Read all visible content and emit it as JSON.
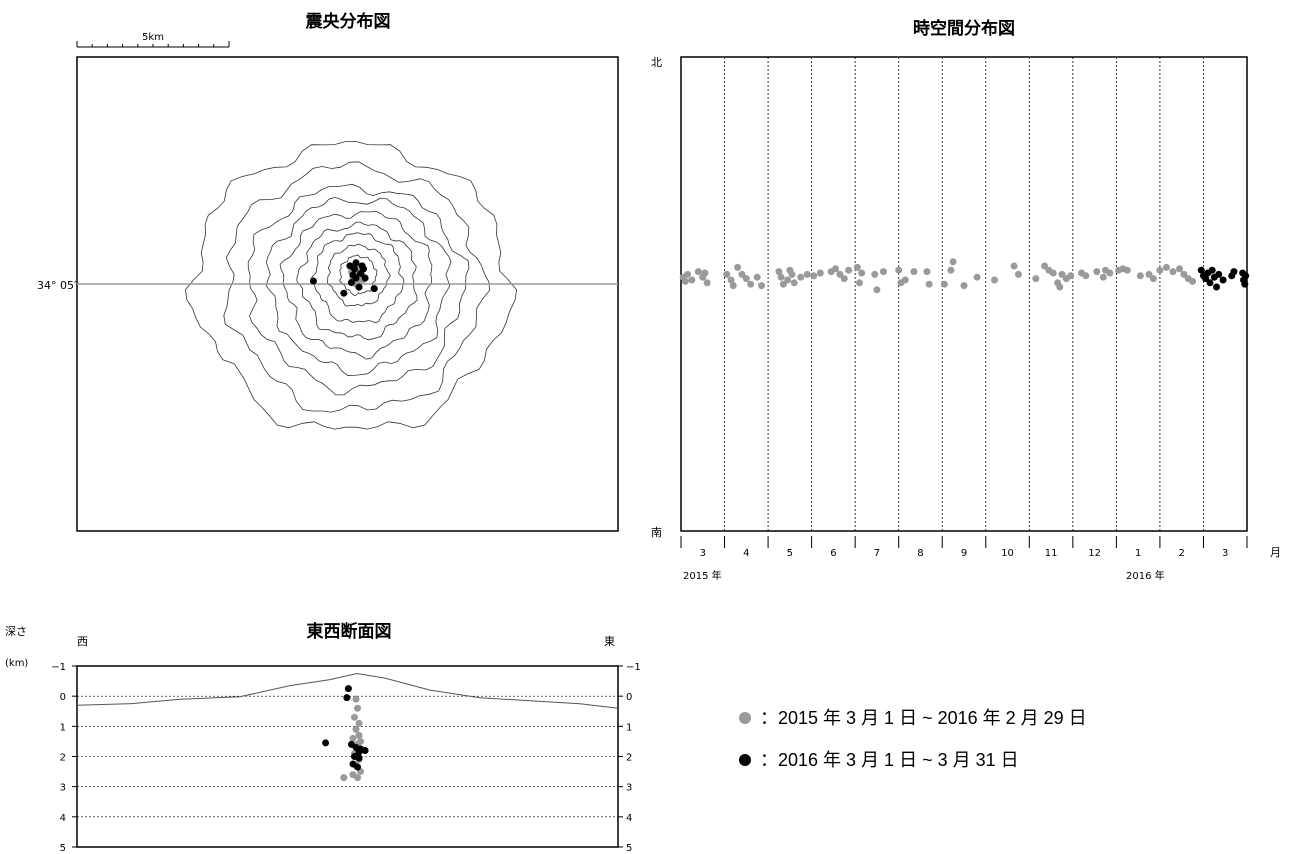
{
  "colors": {
    "previous": "#9a9a9a",
    "current": "#000000",
    "line": "#000000",
    "latitude_line": "#9a9a9a"
  },
  "legend": {
    "previous_label": "：2015 年 3 月 1 日 ~ 2016 年 2 月 29 日",
    "current_label": "：2016 年 3 月 1 日 ~ 3 月 31 日"
  },
  "chart_data": [
    {
      "type": "scatter",
      "id": "epicenter_map",
      "title": "震央分布図",
      "scale_label": "5km",
      "latitude_label": "34° 05′",
      "series": [
        {
          "points": [
            {
              "x": 0.0,
              "y": 0.2
            },
            {
              "x": 0.1,
              "y": -0.1
            },
            {
              "x": -0.1,
              "y": 0.0
            },
            {
              "x": 0.05,
              "y": 0.3
            },
            {
              "x": 0.2,
              "y": 0.1
            },
            {
              "x": -0.15,
              "y": 0.2
            },
            {
              "x": 0.25,
              "y": -0.05
            },
            {
              "x": 0.0,
              "y": -0.2
            }
          ]
        },
        {
          "points": [
            {
              "x": -0.2,
              "y": 0.4
            },
            {
              "x": 0.0,
              "y": 0.5
            },
            {
              "x": 0.2,
              "y": 0.4
            },
            {
              "x": -0.1,
              "y": 0.1
            },
            {
              "x": 0.15,
              "y": 0.15
            },
            {
              "x": 0.3,
              "y": 0.0
            },
            {
              "x": -0.15,
              "y": -0.15
            },
            {
              "x": 0.1,
              "y": -0.3
            },
            {
              "x": -0.4,
              "y": -0.5
            },
            {
              "x": -1.4,
              "y": -0.1
            },
            {
              "x": 0.6,
              "y": -0.35
            },
            {
              "x": 0.0,
              "y": 0.0
            },
            {
              "x": 0.25,
              "y": 0.3
            },
            {
              "x": -0.05,
              "y": 0.3
            }
          ]
        }
      ]
    },
    {
      "type": "scatter",
      "id": "space_time",
      "title": "時空間分布図",
      "y_top_label": "北",
      "y_bottom_label": "南",
      "x_unit_label": "月",
      "month_labels": [
        "3",
        "4",
        "5",
        "6",
        "7",
        "8",
        "9",
        "10",
        "11",
        "12",
        "1",
        "2",
        "3"
      ],
      "year_labels": [
        "2015 年",
        "2016 年"
      ],
      "xlim": [
        0,
        13
      ],
      "series": [
        {
          "points": [
            {
              "x": 0.05,
              "y": 0.1
            },
            {
              "x": 0.1,
              "y": -0.05
            },
            {
              "x": 0.15,
              "y": 0.2
            },
            {
              "x": 0.25,
              "y": 0.0
            },
            {
              "x": 0.4,
              "y": 0.3
            },
            {
              "x": 0.5,
              "y": 0.1
            },
            {
              "x": 0.55,
              "y": 0.25
            },
            {
              "x": 0.6,
              "y": -0.1
            },
            {
              "x": 1.05,
              "y": 0.2
            },
            {
              "x": 1.15,
              "y": 0.0
            },
            {
              "x": 1.2,
              "y": -0.2
            },
            {
              "x": 1.3,
              "y": 0.45
            },
            {
              "x": 1.4,
              "y": 0.2
            },
            {
              "x": 1.5,
              "y": 0.05
            },
            {
              "x": 1.6,
              "y": -0.15
            },
            {
              "x": 1.75,
              "y": 0.1
            },
            {
              "x": 1.85,
              "y": -0.2
            },
            {
              "x": 2.25,
              "y": 0.3
            },
            {
              "x": 2.3,
              "y": 0.1
            },
            {
              "x": 2.35,
              "y": -0.15
            },
            {
              "x": 2.45,
              "y": 0.0
            },
            {
              "x": 2.5,
              "y": 0.35
            },
            {
              "x": 2.55,
              "y": 0.2
            },
            {
              "x": 2.6,
              "y": -0.1
            },
            {
              "x": 2.75,
              "y": 0.1
            },
            {
              "x": 2.9,
              "y": 0.2
            },
            {
              "x": 3.05,
              "y": 0.15
            },
            {
              "x": 3.2,
              "y": 0.25
            },
            {
              "x": 3.45,
              "y": 0.3
            },
            {
              "x": 3.55,
              "y": 0.4
            },
            {
              "x": 3.65,
              "y": 0.2
            },
            {
              "x": 3.75,
              "y": 0.05
            },
            {
              "x": 3.85,
              "y": 0.35
            },
            {
              "x": 4.05,
              "y": 0.45
            },
            {
              "x": 4.1,
              "y": -0.1
            },
            {
              "x": 4.15,
              "y": 0.25
            },
            {
              "x": 4.45,
              "y": 0.2
            },
            {
              "x": 4.5,
              "y": -0.35
            },
            {
              "x": 4.65,
              "y": 0.3
            },
            {
              "x": 5.0,
              "y": 0.35
            },
            {
              "x": 5.05,
              "y": -0.1
            },
            {
              "x": 5.15,
              "y": 0.0
            },
            {
              "x": 5.35,
              "y": 0.3
            },
            {
              "x": 5.65,
              "y": 0.3
            },
            {
              "x": 5.7,
              "y": -0.15
            },
            {
              "x": 6.05,
              "y": -0.15
            },
            {
              "x": 6.2,
              "y": 0.35
            },
            {
              "x": 6.25,
              "y": 0.65
            },
            {
              "x": 6.5,
              "y": -0.2
            },
            {
              "x": 6.8,
              "y": 0.1
            },
            {
              "x": 7.2,
              "y": 0.0
            },
            {
              "x": 7.65,
              "y": 0.5
            },
            {
              "x": 7.75,
              "y": 0.2
            },
            {
              "x": 8.15,
              "y": 0.05
            },
            {
              "x": 8.35,
              "y": 0.5
            },
            {
              "x": 8.45,
              "y": 0.35
            },
            {
              "x": 8.55,
              "y": 0.25
            },
            {
              "x": 8.65,
              "y": -0.1
            },
            {
              "x": 8.7,
              "y": -0.25
            },
            {
              "x": 8.75,
              "y": 0.2
            },
            {
              "x": 8.85,
              "y": 0.05
            },
            {
              "x": 8.95,
              "y": 0.15
            },
            {
              "x": 9.2,
              "y": 0.25
            },
            {
              "x": 9.3,
              "y": 0.15
            },
            {
              "x": 9.55,
              "y": 0.3
            },
            {
              "x": 9.7,
              "y": 0.1
            },
            {
              "x": 9.75,
              "y": 0.35
            },
            {
              "x": 9.85,
              "y": 0.25
            },
            {
              "x": 10.05,
              "y": 0.35
            },
            {
              "x": 10.15,
              "y": 0.4
            },
            {
              "x": 10.25,
              "y": 0.35
            },
            {
              "x": 10.55,
              "y": 0.15
            },
            {
              "x": 10.75,
              "y": 0.2
            },
            {
              "x": 10.85,
              "y": 0.05
            },
            {
              "x": 11.0,
              "y": 0.35
            },
            {
              "x": 11.15,
              "y": 0.45
            },
            {
              "x": 11.3,
              "y": 0.3
            },
            {
              "x": 11.45,
              "y": 0.4
            },
            {
              "x": 11.55,
              "y": 0.2
            },
            {
              "x": 11.65,
              "y": 0.05
            },
            {
              "x": 11.75,
              "y": -0.05
            }
          ]
        },
        {
          "points": [
            {
              "x": 11.95,
              "y": 0.35
            },
            {
              "x": 12.0,
              "y": 0.15
            },
            {
              "x": 12.05,
              "y": 0.05
            },
            {
              "x": 12.1,
              "y": 0.25
            },
            {
              "x": 12.15,
              "y": -0.1
            },
            {
              "x": 12.2,
              "y": 0.35
            },
            {
              "x": 12.25,
              "y": 0.1
            },
            {
              "x": 12.3,
              "y": -0.25
            },
            {
              "x": 12.35,
              "y": 0.2
            },
            {
              "x": 12.45,
              "y": 0.0
            },
            {
              "x": 12.65,
              "y": 0.15
            },
            {
              "x": 12.7,
              "y": 0.3
            },
            {
              "x": 12.9,
              "y": 0.25
            },
            {
              "x": 12.92,
              "y": 0.0
            },
            {
              "x": 12.95,
              "y": -0.15
            },
            {
              "x": 12.97,
              "y": 0.15
            }
          ]
        }
      ]
    },
    {
      "type": "scatter",
      "id": "ew_cross_section",
      "title": "東西断面図",
      "ylabel": "深さ",
      "yunit": "(km)",
      "west_label": "西",
      "east_label": "東",
      "ylim": [
        -1,
        5
      ],
      "y_ticks": [
        "−1",
        "0",
        "1",
        "2",
        "3",
        "4",
        "5"
      ],
      "series": [
        {
          "points": [
            {
              "x": 0.0,
              "y": 0.1
            },
            {
              "x": 0.05,
              "y": 0.4
            },
            {
              "x": -0.05,
              "y": 0.7
            },
            {
              "x": 0.1,
              "y": 0.9
            },
            {
              "x": 0.0,
              "y": 1.1
            },
            {
              "x": 0.1,
              "y": 1.3
            },
            {
              "x": -0.1,
              "y": 1.4
            },
            {
              "x": 0.05,
              "y": 1.6
            },
            {
              "x": 0.15,
              "y": 1.5
            },
            {
              "x": -0.05,
              "y": 1.9
            },
            {
              "x": 0.1,
              "y": 2.1
            },
            {
              "x": 0.0,
              "y": 2.3
            },
            {
              "x": 0.15,
              "y": 2.5
            },
            {
              "x": -0.1,
              "y": 2.6
            },
            {
              "x": 0.05,
              "y": 2.7
            },
            {
              "x": -0.4,
              "y": 2.7
            }
          ]
        },
        {
          "points": [
            {
              "x": -0.25,
              "y": -0.25
            },
            {
              "x": -0.3,
              "y": 0.05
            },
            {
              "x": -1.0,
              "y": 1.55
            },
            {
              "x": -0.15,
              "y": 1.6
            },
            {
              "x": 0.0,
              "y": 1.7
            },
            {
              "x": 0.15,
              "y": 1.75
            },
            {
              "x": 0.3,
              "y": 1.8
            },
            {
              "x": -0.05,
              "y": 2.0
            },
            {
              "x": 0.1,
              "y": 2.05
            },
            {
              "x": -0.1,
              "y": 2.25
            },
            {
              "x": 0.05,
              "y": 2.35
            },
            {
              "x": 0.1,
              "y": 1.85
            }
          ]
        }
      ]
    }
  ]
}
